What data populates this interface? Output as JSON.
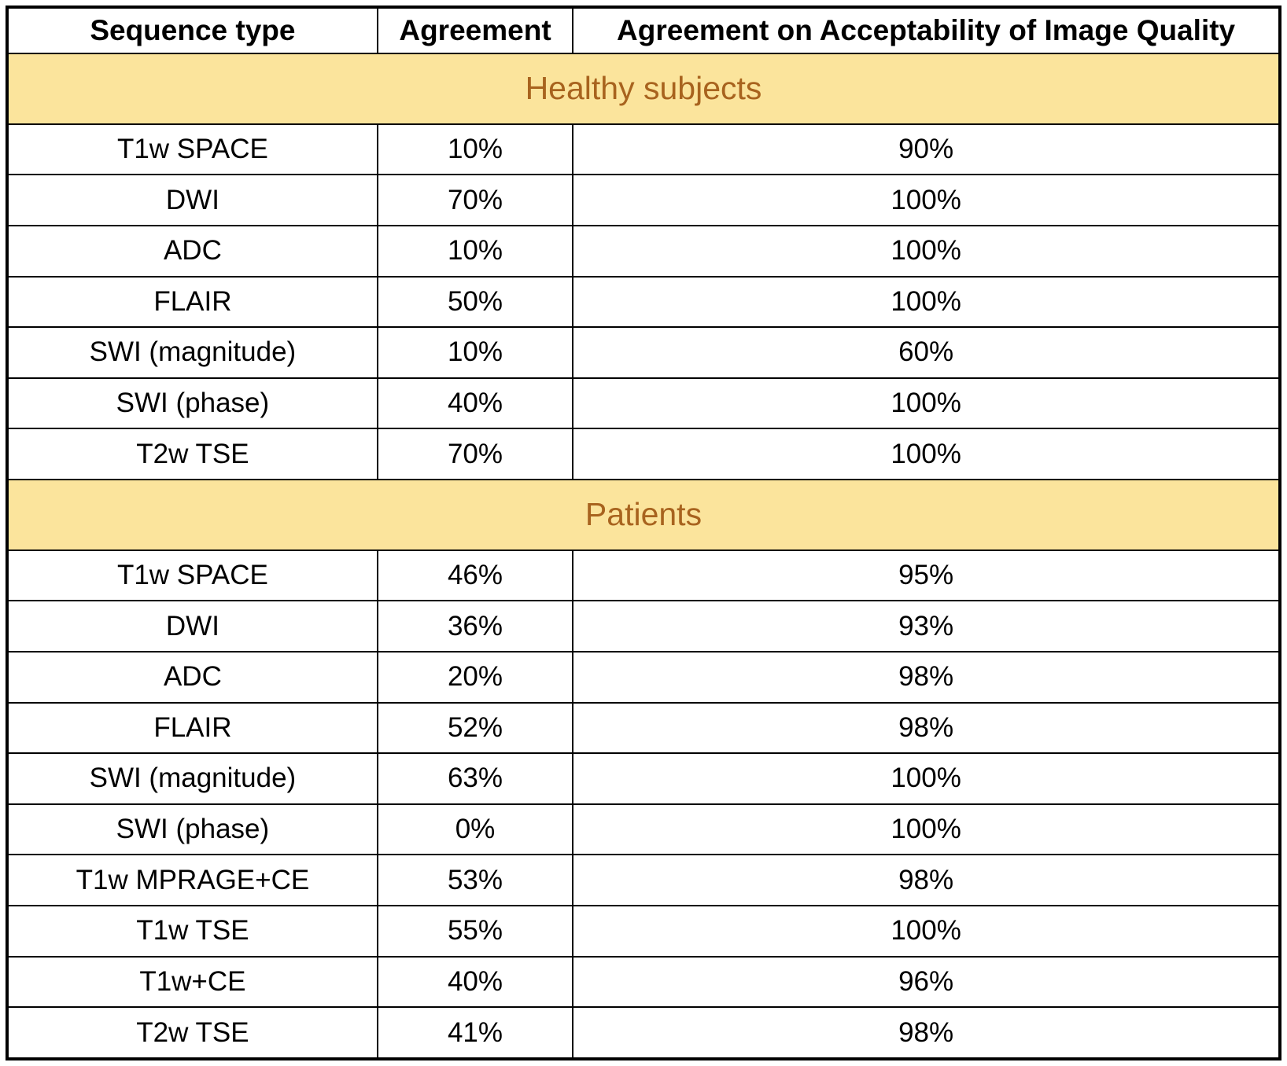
{
  "chart_data": {
    "type": "table",
    "columns": [
      "Sequence type",
      "Agreement",
      "Agreement on Acceptability of Image Quality"
    ],
    "sections": [
      {
        "label": "Healthy subjects",
        "rows": [
          [
            "T1w SPACE",
            "10%",
            "90%"
          ],
          [
            "DWI",
            "70%",
            "100%"
          ],
          [
            "ADC",
            "10%",
            "100%"
          ],
          [
            "FLAIR",
            "50%",
            "100%"
          ],
          [
            "SWI (magnitude)",
            "10%",
            "60%"
          ],
          [
            "SWI (phase)",
            "40%",
            "100%"
          ],
          [
            "T2w TSE",
            "70%",
            "100%"
          ]
        ]
      },
      {
        "label": "Patients",
        "rows": [
          [
            "T1w SPACE",
            "46%",
            "95%"
          ],
          [
            "DWI",
            "36%",
            "93%"
          ],
          [
            "ADC",
            "20%",
            "98%"
          ],
          [
            "FLAIR",
            "52%",
            "98%"
          ],
          [
            "SWI (magnitude)",
            "63%",
            "100%"
          ],
          [
            "SWI (phase)",
            "0%",
            "100%"
          ],
          [
            "T1w MPRAGE+CE",
            "53%",
            "98%"
          ],
          [
            "T1w TSE",
            "55%",
            "100%"
          ],
          [
            "T1w+CE",
            "40%",
            "96%"
          ],
          [
            "T2w TSE",
            "41%",
            "98%"
          ]
        ]
      }
    ],
    "layout": {
      "grid": "on",
      "section_band_bg": "#FBE49C",
      "section_band_text": "#A8631E",
      "border_color": "#000000",
      "header_bold": true
    }
  }
}
